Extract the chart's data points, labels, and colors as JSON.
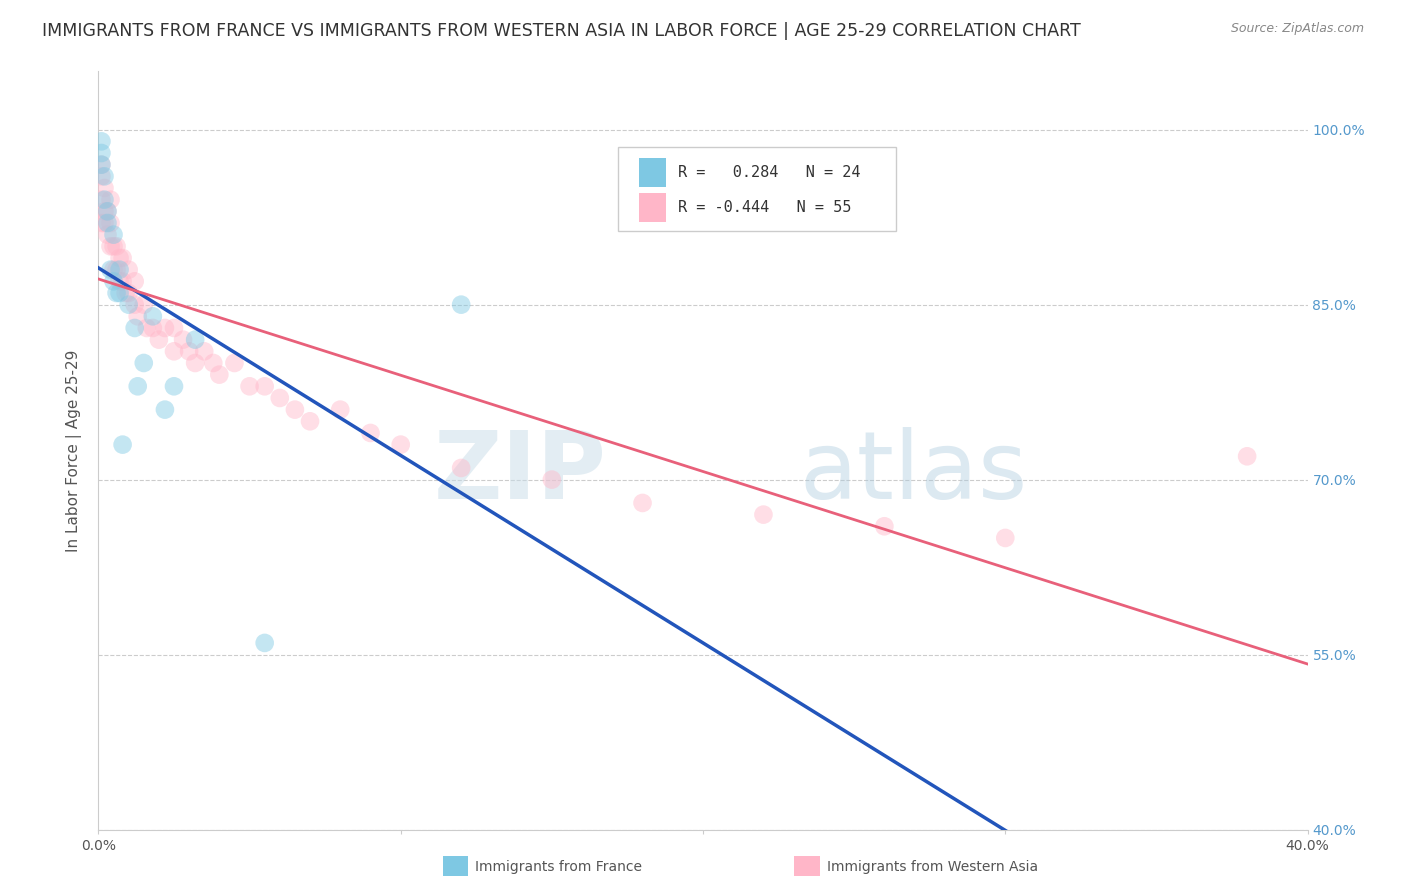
{
  "title": "IMMIGRANTS FROM FRANCE VS IMMIGRANTS FROM WESTERN ASIA IN LABOR FORCE | AGE 25-29 CORRELATION CHART",
  "source": "Source: ZipAtlas.com",
  "ylabel": "In Labor Force | Age 25-29",
  "xlim": [
    0.0,
    0.4
  ],
  "ylim": [
    0.4,
    1.05
  ],
  "yticks": [
    0.4,
    0.55,
    0.7,
    0.85,
    1.0
  ],
  "ytick_labels": [
    "40.0%",
    "55.0%",
    "70.0%",
    "85.0%",
    "100.0%"
  ],
  "xticks": [
    0.0,
    0.1,
    0.2,
    0.3,
    0.4
  ],
  "xtick_labels": [
    "0.0%",
    "",
    "",
    "",
    "40.0%"
  ],
  "france_color": "#7ec8e3",
  "western_asia_color": "#ffb6c8",
  "france_line_color": "#2255bb",
  "western_asia_line_color": "#e8607a",
  "R_france": 0.284,
  "N_france": 24,
  "R_western_asia": -0.444,
  "N_western_asia": 55,
  "france_x": [
    0.001,
    0.001,
    0.001,
    0.002,
    0.002,
    0.003,
    0.003,
    0.004,
    0.005,
    0.005,
    0.006,
    0.007,
    0.007,
    0.008,
    0.01,
    0.012,
    0.013,
    0.015,
    0.018,
    0.022,
    0.025,
    0.032,
    0.055,
    0.12
  ],
  "france_y": [
    0.97,
    0.98,
    0.99,
    0.94,
    0.96,
    0.92,
    0.93,
    0.88,
    0.87,
    0.91,
    0.86,
    0.86,
    0.88,
    0.73,
    0.85,
    0.83,
    0.78,
    0.8,
    0.84,
    0.76,
    0.78,
    0.82,
    0.56,
    0.85
  ],
  "western_asia_x": [
    0.001,
    0.001,
    0.001,
    0.001,
    0.002,
    0.002,
    0.002,
    0.003,
    0.003,
    0.004,
    0.004,
    0.004,
    0.005,
    0.005,
    0.006,
    0.006,
    0.007,
    0.007,
    0.008,
    0.008,
    0.009,
    0.01,
    0.01,
    0.012,
    0.012,
    0.013,
    0.015,
    0.016,
    0.018,
    0.02,
    0.022,
    0.025,
    0.025,
    0.028,
    0.03,
    0.032,
    0.035,
    0.038,
    0.04,
    0.045,
    0.05,
    0.055,
    0.06,
    0.065,
    0.07,
    0.08,
    0.09,
    0.1,
    0.12,
    0.15,
    0.18,
    0.22,
    0.26,
    0.3,
    0.38
  ],
  "western_asia_y": [
    0.92,
    0.94,
    0.96,
    0.97,
    0.92,
    0.93,
    0.95,
    0.91,
    0.93,
    0.9,
    0.92,
    0.94,
    0.88,
    0.9,
    0.88,
    0.9,
    0.87,
    0.89,
    0.87,
    0.89,
    0.86,
    0.86,
    0.88,
    0.85,
    0.87,
    0.84,
    0.85,
    0.83,
    0.83,
    0.82,
    0.83,
    0.81,
    0.83,
    0.82,
    0.81,
    0.8,
    0.81,
    0.8,
    0.79,
    0.8,
    0.78,
    0.78,
    0.77,
    0.76,
    0.75,
    0.76,
    0.74,
    0.73,
    0.71,
    0.7,
    0.68,
    0.67,
    0.66,
    0.65,
    0.72
  ],
  "background_color": "#ffffff",
  "grid_color": "#cccccc",
  "title_fontsize": 12.5,
  "axis_label_fontsize": 11,
  "tick_fontsize": 10,
  "legend_fontsize": 11,
  "marker_size": 180,
  "marker_alpha": 0.45,
  "right_ytick_color": "#5599cc",
  "watermark_text": "ZIP atlas",
  "watermark_color": "#d0e4f0",
  "legend_entries": [
    {
      "label": "R =  0.284   N = 24",
      "color": "#7ec8e3"
    },
    {
      "label": "R = -0.444   N = 55",
      "color": "#ffb6c8"
    }
  ],
  "bottom_legend": [
    {
      "label": "Immigrants from France",
      "color": "#7ec8e3"
    },
    {
      "label": "Immigrants from Western Asia",
      "color": "#ffb6c8"
    }
  ]
}
